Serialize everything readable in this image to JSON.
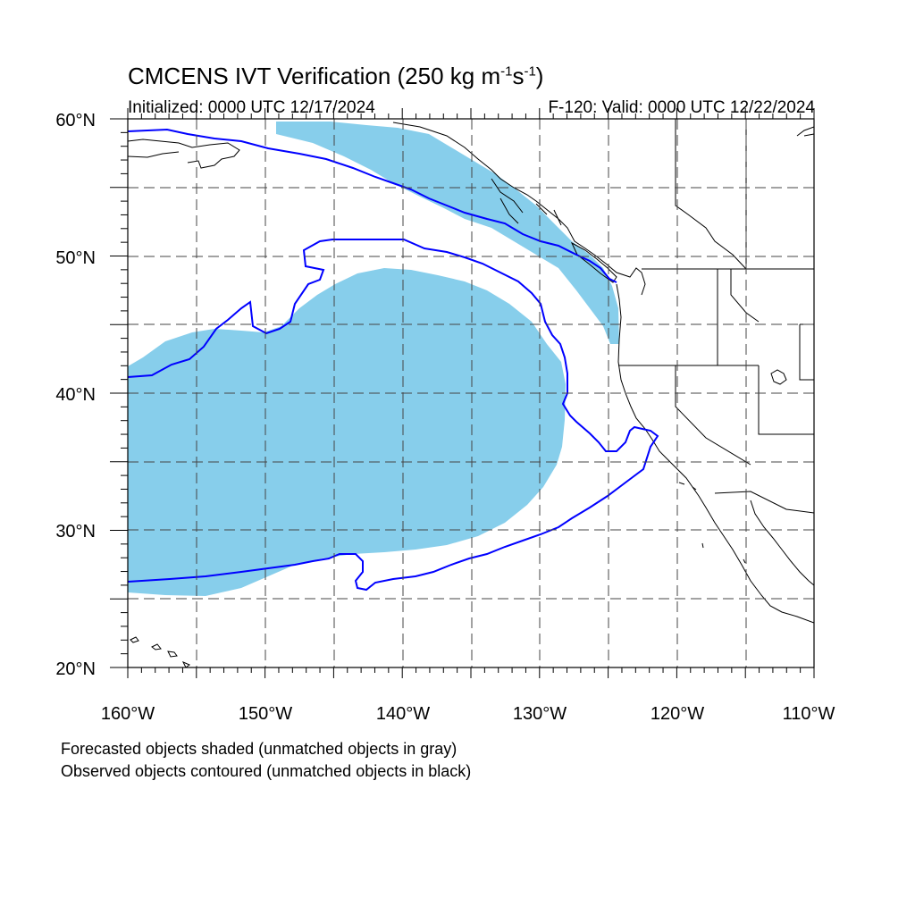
{
  "title": {
    "main": "CMCENS IVT Verification (250 kg m",
    "sup1": "-1",
    "mid": "s",
    "sup2": "-1",
    "end": ")"
  },
  "initialized": "Initialized: 0000 UTC 12/17/2024",
  "valid": "F-120: Valid: 0000 UTC 12/22/2024",
  "notes": [
    "Forecasted objects shaded (unmatched objects in gray)",
    "Observed objects contoured (unmatched objects in black)"
  ],
  "map": {
    "lon_range": [
      -160,
      -110
    ],
    "lat_range": [
      20,
      60
    ],
    "lon_ticks": [
      -160,
      -150,
      -140,
      -130,
      -120,
      -110
    ],
    "lat_ticks": [
      20,
      30,
      40,
      50,
      60
    ],
    "lon_labels": [
      "160°W",
      "150°W",
      "140°W",
      "130°W",
      "120°W",
      "110°W"
    ],
    "lat_labels": [
      "20°N",
      "30°N",
      "40°N",
      "50°N",
      "60°N"
    ],
    "grid": "dashed, every 5 degrees",
    "forecast_color": "#87ceeb",
    "observed_color": "#0000ff",
    "coast_color": "#000000"
  }
}
